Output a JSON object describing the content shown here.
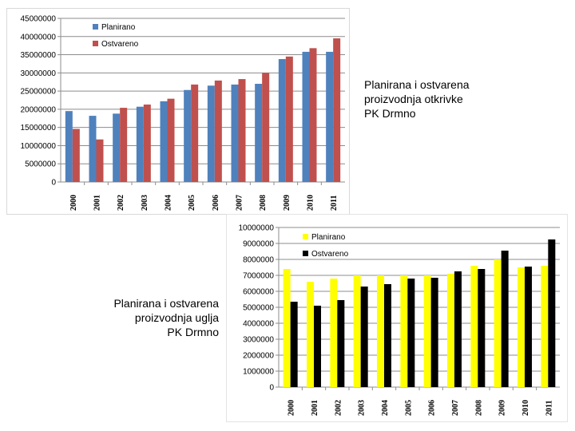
{
  "chart_data": [
    {
      "type": "bar",
      "categories": [
        "2000",
        "2001",
        "2002",
        "2003",
        "2004",
        "2005",
        "2006",
        "2007",
        "2008",
        "2009",
        "2010",
        "2011"
      ],
      "series": [
        {
          "name": "Planirano",
          "color": "#4f81bd",
          "values": [
            19500000,
            18200000,
            18800000,
            20700000,
            22200000,
            25300000,
            26500000,
            26800000,
            27000000,
            33800000,
            35800000,
            35800000
          ]
        },
        {
          "name": "Ostvareno",
          "color": "#c0504d",
          "values": [
            14600000,
            11700000,
            20400000,
            21300000,
            22900000,
            26800000,
            27900000,
            28300000,
            30000000,
            34500000,
            36800000,
            39500000
          ]
        }
      ],
      "yticks": [
        "0",
        "5000000",
        "10000000",
        "15000000",
        "20000000",
        "25000000",
        "30000000",
        "35000000",
        "40000000",
        "45000000"
      ],
      "ylim": [
        0,
        45000000
      ],
      "grid": true,
      "legend": "top-left",
      "title": "",
      "xlabel": "",
      "ylabel": ""
    },
    {
      "type": "bar",
      "categories": [
        "2000",
        "2001",
        "2002",
        "2003",
        "2004",
        "2005",
        "2006",
        "2007",
        "2008",
        "2009",
        "2010",
        "2011"
      ],
      "series": [
        {
          "name": "Planirano",
          "color": "#ffff00",
          "values": [
            7400000,
            6600000,
            6800000,
            7000000,
            7000000,
            7000000,
            7000000,
            7100000,
            7600000,
            8000000,
            7500000,
            7600000
          ]
        },
        {
          "name": "Ostvareno",
          "color": "#000000",
          "values": [
            5350000,
            5100000,
            5450000,
            6300000,
            6450000,
            6800000,
            6850000,
            7250000,
            7400000,
            8550000,
            7550000,
            9250000
          ]
        }
      ],
      "yticks": [
        "0",
        "1000000",
        "2000000",
        "3000000",
        "4000000",
        "5000000",
        "6000000",
        "7000000",
        "8000000",
        "9000000",
        "10000000"
      ],
      "ylim": [
        0,
        10000000
      ],
      "grid": true,
      "legend": "top-left",
      "title": "",
      "xlabel": "",
      "ylabel": ""
    }
  ],
  "captions": {
    "top": [
      "Planirana i ostvarena",
      "proizvodnja otkrivke",
      "PK Drmno"
    ],
    "bottom": [
      "Planirana i ostvarena",
      "proizvodnja uglja",
      "PK Drmno"
    ]
  }
}
